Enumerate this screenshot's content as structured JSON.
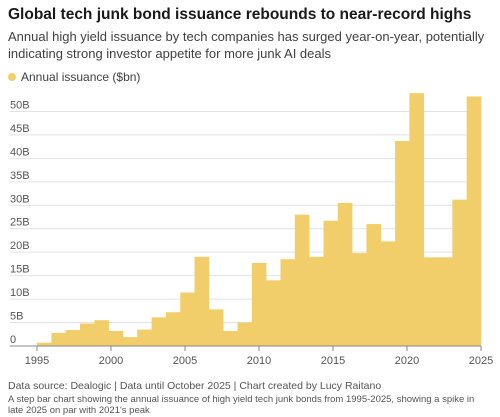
{
  "header": {
    "title": "Global tech junk bond issuance rebounds to near-record highs",
    "subtitle": "Annual high yield issuance by tech companies has surged year-on-year, potentially indicating strong investor appetite for more junk AI deals"
  },
  "footer": {
    "source": "Data source: Dealogic | Data until October 2025 | Chart created by Lucy Raitano",
    "caption": "A step bar chart showing the annual issuance of high yield tech junk bonds from 1995-2025, showing a spike in late 2025 on par with 2021's peak"
  },
  "chart_data": {
    "type": "bar",
    "style": "step",
    "title": "Global tech junk bond issuance rebounds to near-record highs",
    "series": [
      {
        "name": "Annual issuance ($bn)",
        "color": "#f2ce6b",
        "x": [
          1995,
          1996,
          1997,
          1998,
          1999,
          2000,
          2001,
          2002,
          2003,
          2004,
          2005,
          2006,
          2007,
          2008,
          2009,
          2010,
          2011,
          2012,
          2013,
          2014,
          2015,
          2016,
          2017,
          2018,
          2019,
          2020,
          2021,
          2022,
          2023,
          2024,
          2025
        ],
        "values": [
          0.7,
          2.8,
          3.4,
          4.8,
          5.5,
          3.2,
          1.9,
          3.5,
          6.1,
          7.2,
          11.4,
          19.0,
          7.8,
          3.2,
          5.0,
          17.7,
          14.0,
          18.5,
          28.0,
          19.0,
          26.7,
          30.5,
          19.8,
          26.0,
          22.3,
          43.7,
          53.9,
          18.9,
          18.9,
          31.2,
          53.2
        ]
      }
    ],
    "xlim": [
      1995,
      2025
    ],
    "ylim": [
      0,
      55
    ],
    "x_ticks": [
      1995,
      2000,
      2005,
      2010,
      2015,
      2020,
      2025
    ],
    "y_ticks": [
      {
        "value": 0,
        "label": "0"
      },
      {
        "value": 5,
        "label": "5B"
      },
      {
        "value": 10,
        "label": "10B"
      },
      {
        "value": 15,
        "label": "15B"
      },
      {
        "value": 20,
        "label": "20B"
      },
      {
        "value": 25,
        "label": "25B"
      },
      {
        "value": 30,
        "label": "30B"
      },
      {
        "value": 35,
        "label": "35B"
      },
      {
        "value": 40,
        "label": "40B"
      },
      {
        "value": 45,
        "label": "45B"
      },
      {
        "value": 50,
        "label": "50B"
      }
    ],
    "grid": true,
    "legend": "top-left",
    "colors": {
      "bar": "#f2ce6b",
      "grid": "#e2e2e2",
      "axis": "#888888"
    }
  }
}
